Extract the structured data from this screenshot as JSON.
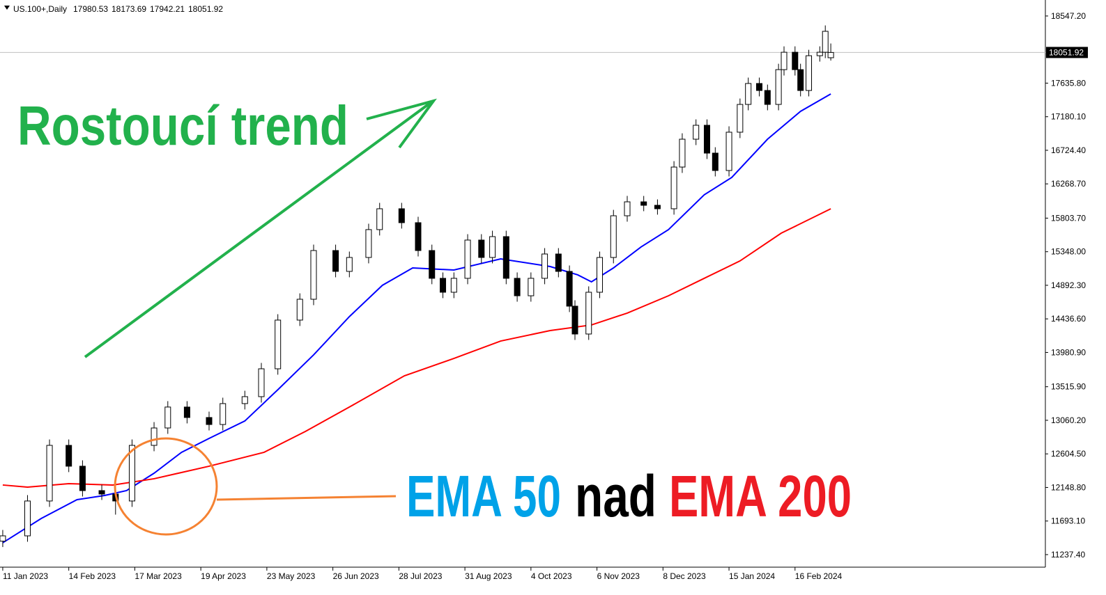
{
  "chart_data": {
    "type": "candlestick",
    "symbol": "US.100+,Daily",
    "header_ohlc": [
      17980.53,
      18173.69,
      17942.21,
      18051.92
    ],
    "last_price": 18051.92,
    "annotations": {
      "trend": "Rostoucí trend",
      "ema50": "EMA 50",
      "nad": "nad",
      "ema200": "EMA 200"
    },
    "x": [
      1,
      10,
      18,
      25,
      30,
      37,
      42,
      48,
      56,
      61,
      68,
      76,
      81,
      89,
      95,
      101,
      109,
      114,
      122,
      127,
      134,
      138,
      146,
      152,
      157,
      161,
      165,
      170,
      175,
      179,
      184,
      188,
      193,
      198,
      203,
      207,
      209,
      214,
      218,
      223,
      228,
      234,
      239,
      245,
      248,
      253,
      257,
      260,
      265,
      269,
      272,
      276,
      279,
      283,
      285,
      289,
      291,
      294,
      298,
      300,
      302
    ],
    "open": [
      11420,
      11492,
      11965,
      12720,
      12437,
      12106,
      12059,
      11965,
      12720,
      12956,
      13240,
      13098,
      13003,
      13287,
      13381,
      13759,
      14420,
      14703,
      15364,
      15081,
      15270,
      15648,
      15931,
      15742,
      15364,
      14987,
      14798,
      14987,
      15506,
      15270,
      15553,
      14987,
      14750,
      14987,
      15317,
      15081,
      14609,
      14231,
      14798,
      15270,
      15836,
      16025,
      15978,
      15931,
      16497,
      16875,
      17064,
      16686,
      16450,
      16970,
      17347,
      17631,
      17536,
      17347,
      17819,
      18055,
      17819,
      17536,
      18008,
      18055,
      17980.53
    ],
    "high": [
      11572,
      12045,
      12800,
      12800,
      12517,
      12186,
      12139,
      12800,
      13036,
      13320,
      13320,
      13178,
      13367,
      13461,
      13839,
      14500,
      14783,
      15444,
      15444,
      15350,
      15728,
      16011,
      16011,
      15822,
      15444,
      15067,
      15067,
      15586,
      15586,
      15633,
      15633,
      15067,
      15067,
      15397,
      15397,
      15161,
      14689,
      14878,
      15350,
      15916,
      16105,
      16105,
      16058,
      16577,
      16955,
      17144,
      17144,
      16766,
      17050,
      17427,
      17711,
      17711,
      17616,
      17899,
      18135,
      18135,
      17899,
      18088,
      18135,
      18419,
      18173.69
    ],
    "low": [
      11340,
      11412,
      11885,
      12357,
      12026,
      11979,
      11780,
      11885,
      12640,
      12876,
      13018,
      12923,
      12923,
      13207,
      13301,
      13679,
      14340,
      14623,
      15001,
      15001,
      15190,
      15568,
      15662,
      15284,
      14907,
      14718,
      14718,
      14907,
      15190,
      15190,
      14907,
      14670,
      14670,
      14907,
      15001,
      14529,
      14151,
      14151,
      14718,
      15190,
      15756,
      15898,
      15851,
      15851,
      16417,
      16795,
      16606,
      16370,
      16370,
      16890,
      17267,
      17456,
      17267,
      17267,
      17739,
      17739,
      17456,
      17456,
      17928,
      17975,
      17942.21
    ],
    "close": [
      11492,
      11965,
      12720,
      12437,
      12106,
      12059,
      11965,
      12720,
      12956,
      13240,
      13098,
      13003,
      13287,
      13381,
      13759,
      14420,
      14703,
      15364,
      15081,
      15270,
      15648,
      15931,
      15742,
      15364,
      14987,
      14798,
      14987,
      15506,
      15270,
      15553,
      14987,
      14750,
      14987,
      15317,
      15081,
      14609,
      14231,
      14798,
      15270,
      15836,
      16025,
      15978,
      15931,
      16497,
      16875,
      17064,
      16686,
      16450,
      16970,
      17347,
      17631,
      17536,
      17347,
      17819,
      18055,
      17819,
      17536,
      18008,
      18055,
      18339,
      18051.92
    ],
    "lines": [
      {
        "color": "#0000ff",
        "x": [
          1,
          15,
          28,
          38,
          46,
          56,
          66,
          76,
          89,
          101,
          114,
          127,
          139,
          150,
          165,
          182,
          200,
          210,
          215,
          223,
          233,
          243,
          256,
          266,
          279,
          291,
          302
        ],
        "values": [
          11398,
          11728,
          11983,
          12040,
          12106,
          12342,
          12626,
          12814,
          13051,
          13475,
          13948,
          14467,
          14892,
          15128,
          15100,
          15251,
          15147,
          15034,
          14939,
          15128,
          15412,
          15648,
          16120,
          16356,
          16875,
          17253,
          17489
        ]
      },
      {
        "color": "#ff0000",
        "x": [
          1,
          10,
          25,
          41,
          56,
          76,
          96,
          111,
          127,
          147,
          165,
          182,
          200,
          215,
          228,
          243,
          256,
          269,
          284,
          302
        ],
        "values": [
          12182,
          12153,
          12200,
          12182,
          12267,
          12437,
          12626,
          12909,
          13240,
          13664,
          13900,
          14136,
          14278,
          14354,
          14515,
          14750,
          14987,
          15223,
          15600,
          15931
        ]
      }
    ],
    "xlim": [
      0,
      380
    ],
    "xticks": [
      {
        "value": 1,
        "label": "11 Jan 2023"
      },
      {
        "value": 25,
        "label": "14 Feb 2023"
      },
      {
        "value": 49,
        "label": "17 Mar 2023"
      },
      {
        "value": 73,
        "label": "19 Apr 2023"
      },
      {
        "value": 97,
        "label": "23 May 2023"
      },
      {
        "value": 121,
        "label": "26 Jun 2023"
      },
      {
        "value": 145,
        "label": "28 Jul 2023"
      },
      {
        "value": 169,
        "label": "31 Aug 2023"
      },
      {
        "value": 193,
        "label": "4 Oct 2023"
      },
      {
        "value": 217,
        "label": "6 Nov 2023"
      },
      {
        "value": 241,
        "label": "8 Dec 2023"
      },
      {
        "value": 265,
        "label": "15 Jan 2024"
      },
      {
        "value": 289,
        "label": "16 Feb 2024"
      }
    ],
    "ylim": [
      11067,
      18764
    ],
    "yticks": [
      {
        "value": 11237.4,
        "label": "11237.40"
      },
      {
        "value": 11693.1,
        "label": "11693.10"
      },
      {
        "value": 12148.8,
        "label": "12148.80"
      },
      {
        "value": 12604.5,
        "label": "12604.50"
      },
      {
        "value": 13060.2,
        "label": "13060.20"
      },
      {
        "value": 13515.9,
        "label": "13515.90"
      },
      {
        "value": 13980.9,
        "label": "13980.90"
      },
      {
        "value": 14436.6,
        "label": "14436.60"
      },
      {
        "value": 14892.3,
        "label": "14892.30"
      },
      {
        "value": 15348,
        "label": "15348.00"
      },
      {
        "value": 15803.7,
        "label": "15803.70"
      },
      {
        "value": 16268.7,
        "label": "16268.70"
      },
      {
        "value": 16724.4,
        "label": "16724.40"
      },
      {
        "value": 17180.1,
        "label": "17180.10"
      },
      {
        "value": 17635.8,
        "label": "17635.80"
      },
      {
        "value": 18547.2,
        "label": "18547.20"
      }
    ],
    "colors": {
      "trend": "#22b14c",
      "ema50_text": "#00a2e8",
      "nad_text": "#000000",
      "ema200_text": "#ed1c24"
    }
  }
}
